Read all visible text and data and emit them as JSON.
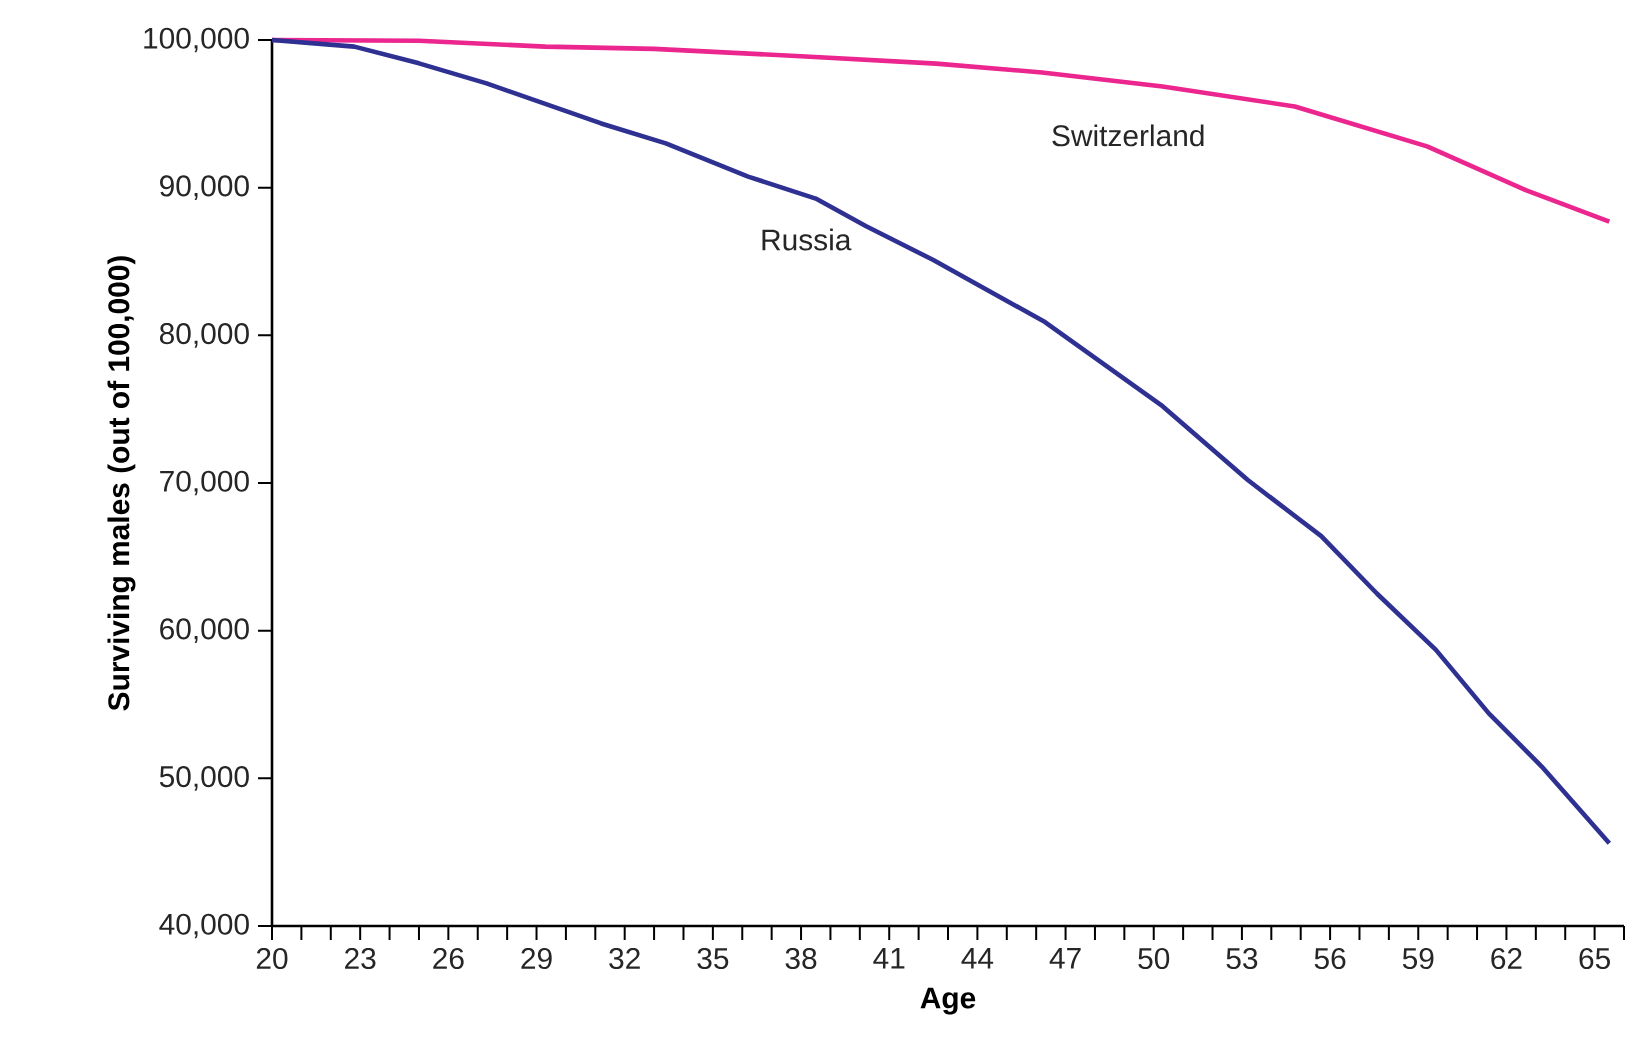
{
  "chart_data": {
    "type": "line",
    "xlabel": "Age",
    "ylabel": "Surviving males (out of 100,000)",
    "xlim": [
      20,
      66
    ],
    "ylim": [
      40000,
      100000
    ],
    "xticks": [
      20,
      {
        "value": 21,
        "label": null
      },
      {
        "value": 22,
        "label": null
      },
      23,
      {
        "value": 24,
        "label": null
      },
      {
        "value": 25,
        "label": null
      },
      26,
      {
        "value": 27,
        "label": null
      },
      {
        "value": 28,
        "label": null
      },
      29,
      {
        "value": 30,
        "label": null
      },
      {
        "value": 31,
        "label": null
      },
      32,
      {
        "value": 33,
        "label": null
      },
      {
        "value": 34,
        "label": null
      },
      35,
      {
        "value": 36,
        "label": null
      },
      {
        "value": 37,
        "label": null
      },
      38,
      {
        "value": 39,
        "label": null
      },
      {
        "value": 40,
        "label": null
      },
      41,
      {
        "value": 42,
        "label": null
      },
      {
        "value": 43,
        "label": null
      },
      44,
      {
        "value": 45,
        "label": null
      },
      {
        "value": 46,
        "label": null
      },
      47,
      {
        "value": 48,
        "label": null
      },
      {
        "value": 49,
        "label": null
      },
      50,
      {
        "value": 51,
        "label": null
      },
      {
        "value": 52,
        "label": null
      },
      53,
      {
        "value": 54,
        "label": null
      },
      {
        "value": 55,
        "label": null
      },
      56,
      {
        "value": 57,
        "label": null
      },
      {
        "value": 58,
        "label": null
      },
      59,
      {
        "value": 60,
        "label": null
      },
      {
        "value": 61,
        "label": null
      },
      62,
      {
        "value": 63,
        "label": null
      },
      {
        "value": 64,
        "label": null
      },
      65,
      {
        "value": 66,
        "label": null
      }
    ],
    "yticks": [
      {
        "value": 40000,
        "label": "40,000"
      },
      {
        "value": 50000,
        "label": "50,000"
      },
      {
        "value": 60000,
        "label": "60,000"
      },
      {
        "value": 70000,
        "label": "70,000"
      },
      {
        "value": 80000,
        "label": "80,000"
      },
      {
        "value": 90000,
        "label": "90,000"
      },
      {
        "value": 100000,
        "label": "100,000"
      }
    ],
    "grid": false,
    "legend": false,
    "marker": "none",
    "line_style": "solid",
    "series": [
      {
        "name": "Switzerland",
        "color": "#ec268f",
        "x": [
          20,
          25,
          29.3,
          33,
          38,
          42.6,
          46.2,
          50.3,
          54.8,
          59.3,
          62.7,
          65.5
        ],
        "values": [
          100000,
          99950,
          99550,
          99400,
          98900,
          98400,
          97800,
          96850,
          95500,
          92800,
          89800,
          87700
        ]
      },
      {
        "name": "Russia",
        "color": "#2e3192",
        "x": [
          20,
          22.8,
          25,
          27.3,
          31.2,
          33.4,
          36.2,
          38.5,
          40.2,
          42.5,
          46.3,
          50.3,
          53.2,
          55.7,
          57.6,
          59.6,
          61.4,
          63.2,
          65.5
        ],
        "values": [
          100000,
          99550,
          98420,
          97060,
          94350,
          93000,
          90750,
          89260,
          87400,
          85100,
          80900,
          75200,
          70200,
          66400,
          62500,
          58700,
          54400,
          50800,
          45600
        ]
      }
    ]
  }
}
